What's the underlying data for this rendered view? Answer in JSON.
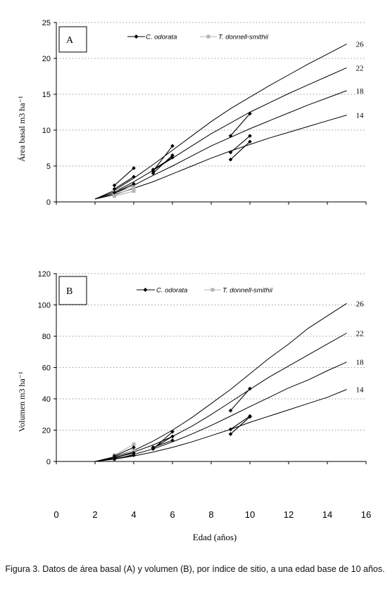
{
  "chart_data": [
    {
      "panel": "A",
      "type": "line",
      "ylabel": "Área basal m3 ha⁻¹",
      "ylim": [
        0,
        25
      ],
      "yticks": [
        0,
        5,
        10,
        15,
        20,
        25
      ],
      "xlim": [
        0,
        16
      ],
      "grid": true,
      "legend": [
        "C. odorata",
        "T. donnell-smithii"
      ],
      "legend_position": "top",
      "site_curves": [
        {
          "label": "26",
          "x": [
            2,
            3,
            4,
            5,
            6,
            7,
            8,
            9,
            10,
            11,
            12,
            13,
            14,
            15
          ],
          "y": [
            0.4,
            1.6,
            3.3,
            5.2,
            7.2,
            9.2,
            11.2,
            13.0,
            14.6,
            16.2,
            17.7,
            19.2,
            20.6,
            22.0
          ]
        },
        {
          "label": "22",
          "x": [
            2,
            3,
            4,
            5,
            6,
            7,
            8,
            9,
            10,
            11,
            12,
            13,
            14,
            15
          ],
          "y": [
            0.4,
            1.4,
            2.8,
            4.4,
            6.1,
            7.8,
            9.5,
            11.0,
            12.5,
            13.8,
            15.1,
            16.3,
            17.5,
            18.7
          ]
        },
        {
          "label": "18",
          "x": [
            2,
            3,
            4,
            5,
            6,
            7,
            8,
            9,
            10,
            11,
            12,
            13,
            14,
            15
          ],
          "y": [
            0.4,
            1.2,
            2.3,
            3.7,
            5.0,
            6.4,
            7.8,
            9.0,
            10.2,
            11.3,
            12.4,
            13.5,
            14.5,
            15.5
          ]
        },
        {
          "label": "14",
          "x": [
            2,
            3,
            4,
            5,
            6,
            7,
            8,
            9,
            10,
            11,
            12,
            13,
            14,
            15
          ],
          "y": [
            0.4,
            1.0,
            1.9,
            2.8,
            3.9,
            5.0,
            6.1,
            7.1,
            8.0,
            8.9,
            9.7,
            10.5,
            11.3,
            12.1
          ]
        }
      ],
      "series": [
        {
          "name": "C. odorata",
          "segments": [
            {
              "x": [
                3,
                4
              ],
              "y": [
                2.3,
                4.7
              ]
            },
            {
              "x": [
                3,
                4
              ],
              "y": [
                1.8,
                3.5
              ]
            },
            {
              "x": [
                3,
                4
              ],
              "y": [
                1.3,
                2.5
              ]
            },
            {
              "x": [
                5,
                6
              ],
              "y": [
                4.3,
                7.8
              ]
            },
            {
              "x": [
                5,
                6
              ],
              "y": [
                4.0,
                6.5
              ]
            },
            {
              "x": [
                5,
                6
              ],
              "y": [
                4.5,
                6.2
              ]
            },
            {
              "x": [
                9,
                10
              ],
              "y": [
                9.2,
                12.3
              ]
            },
            {
              "x": [
                9,
                10
              ],
              "y": [
                6.9,
                9.2
              ]
            },
            {
              "x": [
                9,
                10
              ],
              "y": [
                5.9,
                8.4
              ]
            }
          ]
        },
        {
          "name": "T. donnell-smithii",
          "segments": [
            {
              "x": [
                3,
                4
              ],
              "y": [
                1.5,
                2.2
              ]
            },
            {
              "x": [
                3,
                4
              ],
              "y": [
                1.1,
                1.8
              ]
            },
            {
              "x": [
                3,
                4
              ],
              "y": [
                0.8,
                1.5
              ]
            }
          ]
        }
      ]
    },
    {
      "panel": "B",
      "type": "line",
      "ylabel": "Volumen m3 ha⁻¹",
      "ylim": [
        0,
        120
      ],
      "yticks": [
        0,
        20,
        40,
        60,
        80,
        100,
        120
      ],
      "xlim": [
        0,
        16
      ],
      "grid": true,
      "legend": [
        "C. odorata",
        "T. donnell-smithii"
      ],
      "legend_position": "top",
      "site_curves": [
        {
          "label": "26",
          "x": [
            2,
            3,
            4,
            5,
            6,
            7,
            8,
            9,
            10,
            11,
            12,
            13,
            14,
            15
          ],
          "y": [
            0,
            3,
            7,
            13,
            20,
            28,
            37,
            46,
            56,
            66,
            75,
            85,
            93,
            101
          ]
        },
        {
          "label": "22",
          "x": [
            2,
            3,
            4,
            5,
            6,
            7,
            8,
            9,
            10,
            11,
            12,
            13,
            14,
            15
          ],
          "y": [
            0,
            2.5,
            6,
            10.5,
            16,
            22.5,
            30,
            38,
            46,
            54,
            61,
            68,
            75,
            82
          ]
        },
        {
          "label": "18",
          "x": [
            2,
            3,
            4,
            5,
            6,
            7,
            8,
            9,
            10,
            11,
            12,
            13,
            14,
            15
          ],
          "y": [
            0,
            2,
            4.5,
            8,
            12.5,
            17.5,
            23,
            29,
            35,
            41,
            47,
            52,
            58,
            63.5
          ]
        },
        {
          "label": "14",
          "x": [
            2,
            3,
            4,
            5,
            6,
            7,
            8,
            9,
            10,
            11,
            12,
            13,
            14,
            15
          ],
          "y": [
            0,
            1.5,
            3.5,
            6,
            9,
            12.5,
            16.5,
            20.5,
            25,
            29,
            33,
            37,
            41,
            46
          ]
        }
      ],
      "series": [
        {
          "name": "C. odorata",
          "segments": [
            {
              "x": [
                3,
                4
              ],
              "y": [
                3.5,
                9.0
              ]
            },
            {
              "x": [
                3,
                4
              ],
              "y": [
                2.5,
                5.5
              ]
            },
            {
              "x": [
                3,
                4
              ],
              "y": [
                1.5,
                4.0
              ]
            },
            {
              "x": [
                5,
                6
              ],
              "y": [
                8.0,
                19.0
              ]
            },
            {
              "x": [
                5,
                6
              ],
              "y": [
                8.5,
                16.0
              ]
            },
            {
              "x": [
                5,
                6
              ],
              "y": [
                9.0,
                13.5
              ]
            },
            {
              "x": [
                9,
                10
              ],
              "y": [
                32.5,
                46.5
              ]
            },
            {
              "x": [
                9,
                10
              ],
              "y": [
                20.5,
                29.0
              ]
            },
            {
              "x": [
                9,
                10
              ],
              "y": [
                17.5,
                28.5
              ]
            }
          ]
        },
        {
          "name": "T. donnell-smithii",
          "segments": [
            {
              "x": [
                3,
                4
              ],
              "y": [
                4.0,
                11.0
              ]
            },
            {
              "x": [
                3,
                4
              ],
              "y": [
                2.5,
                7.0
              ]
            },
            {
              "x": [
                3,
                4
              ],
              "y": [
                1.5,
                5.0
              ]
            }
          ]
        }
      ]
    }
  ],
  "shared_x_axis": {
    "xlabel": "Edad (años)",
    "ticks": [
      0,
      2,
      4,
      6,
      8,
      10,
      12,
      14,
      16
    ]
  },
  "colors": {
    "c_odorata": "#000000",
    "t_donnell": "#b4b4b4",
    "curves": "#000000"
  },
  "caption": "Figura 3. Datos de área basal (A) y volumen (B), por índice de sitio, a una edad base de 10 años."
}
